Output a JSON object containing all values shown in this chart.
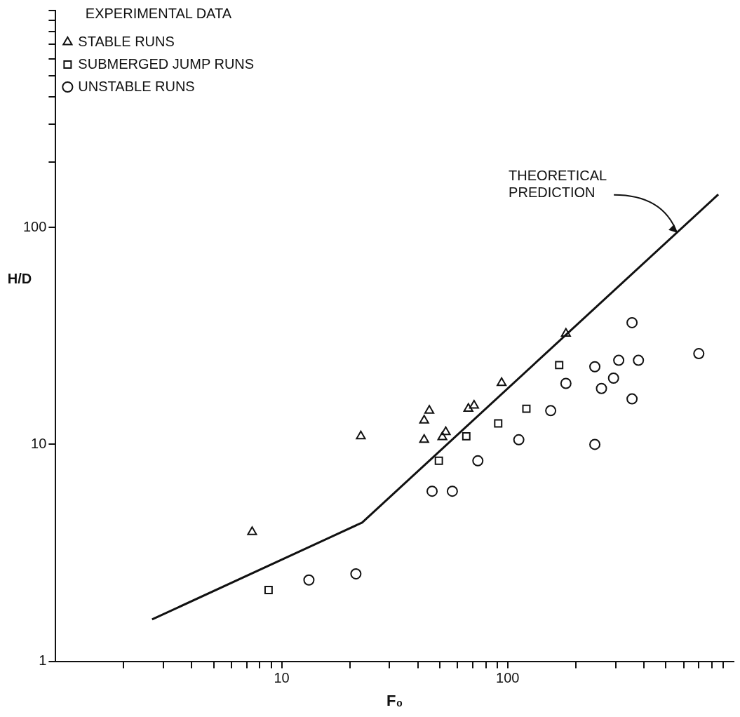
{
  "chart_data": {
    "type": "scatter",
    "xlabel": "F₀",
    "ylabel": "H/D",
    "legend_title": "EXPERIMENTAL DATA",
    "log": "xy",
    "grid": false,
    "legend": "top left",
    "xlim": [
      1,
      1000
    ],
    "ylim": [
      1,
      1000
    ],
    "xticks": [
      {
        "value": 2,
        "label": null
      },
      {
        "value": 3,
        "label": null
      },
      {
        "value": 4,
        "label": null
      },
      {
        "value": 5,
        "label": null
      },
      {
        "value": 6,
        "label": null
      },
      {
        "value": 7,
        "label": null
      },
      {
        "value": 8,
        "label": null
      },
      {
        "value": 9,
        "label": null
      },
      10,
      {
        "value": 20,
        "label": null
      },
      {
        "value": 30,
        "label": null
      },
      {
        "value": 40,
        "label": null
      },
      {
        "value": 50,
        "label": null
      },
      {
        "value": 60,
        "label": null
      },
      {
        "value": 70,
        "label": null
      },
      {
        "value": 80,
        "label": null
      },
      {
        "value": 90,
        "label": null
      },
      100,
      {
        "value": 200,
        "label": null
      },
      {
        "value": 300,
        "label": null
      },
      {
        "value": 400,
        "label": null
      },
      {
        "value": 500,
        "label": null
      },
      {
        "value": 600,
        "label": null
      },
      {
        "value": 700,
        "label": null
      },
      {
        "value": 800,
        "label": null
      },
      {
        "value": 900,
        "label": null
      }
    ],
    "yticks": [
      1,
      10,
      100,
      {
        "value": 200,
        "label": null
      },
      {
        "value": 300,
        "label": null
      },
      {
        "value": 400,
        "label": null
      },
      {
        "value": 500,
        "label": null
      },
      {
        "value": 600,
        "label": null
      },
      {
        "value": 700,
        "label": null
      },
      {
        "value": 800,
        "label": null
      },
      {
        "value": 900,
        "label": null
      },
      {
        "value": 1000,
        "label": null
      }
    ],
    "series": [
      {
        "name": "STABLE RUNS",
        "color": "#111111",
        "marker": "triangle",
        "x": [
          7.4,
          22.4,
          42.7,
          45,
          42.7,
          51.4,
          53.2,
          67,
          71,
          94,
          181
        ],
        "values": [
          3.95,
          10.9,
          10.5,
          14.3,
          12.9,
          10.8,
          11.4,
          14.6,
          15.1,
          19.2,
          32.4
        ]
      },
      {
        "name": "SUBMERGED JUMP RUNS",
        "color": "#111111",
        "marker": "square",
        "x": [
          8.75,
          49.6,
          65.6,
          90.8,
          121,
          169
        ],
        "values": [
          2.13,
          8.4,
          10.9,
          12.5,
          14.6,
          23.2
        ]
      },
      {
        "name": "UNSTABLE RUNS",
        "color": "#111111",
        "marker": "circle",
        "x": [
          13.2,
          21.3,
          46.3,
          56.9,
          73.8,
          112,
          155,
          181,
          243,
          243,
          260,
          294,
          310,
          355,
          355,
          379,
          701
        ],
        "values": [
          2.37,
          2.53,
          6.08,
          6.08,
          8.4,
          10.5,
          14.3,
          19.1,
          10,
          22.8,
          18.1,
          20.2,
          24.4,
          16.2,
          36.4,
          24.4,
          26.2
        ]
      },
      {
        "type": "line",
        "color": "#111111",
        "marker": "none",
        "x": [
          2.67,
          22.7,
          855
        ],
        "values": [
          1.56,
          4.36,
          142
        ]
      }
    ],
    "annotations": [
      {
        "text": "THEORETICAL\nPREDICTION",
        "x": 561,
        "y": 94.6
      }
    ]
  }
}
